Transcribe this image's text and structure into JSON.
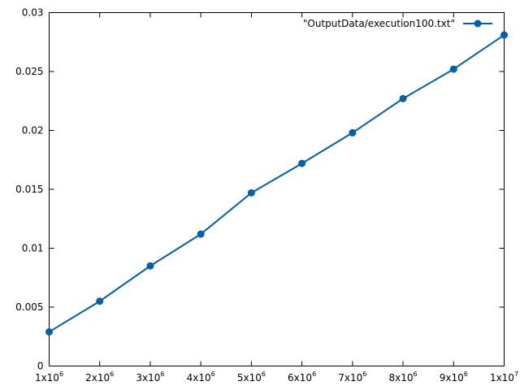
{
  "chart_data": {
    "type": "line",
    "title": "",
    "xlabel": "",
    "ylabel": "",
    "xlim": [
      1000000,
      10000000
    ],
    "ylim": [
      0,
      0.03
    ],
    "x_ticks": [
      {
        "value": 1000000,
        "base": "1x10",
        "exp": "6"
      },
      {
        "value": 2000000,
        "base": "2x10",
        "exp": "6"
      },
      {
        "value": 3000000,
        "base": "3x10",
        "exp": "6"
      },
      {
        "value": 4000000,
        "base": "4x10",
        "exp": "6"
      },
      {
        "value": 5000000,
        "base": "5x10",
        "exp": "6"
      },
      {
        "value": 6000000,
        "base": "6x10",
        "exp": "6"
      },
      {
        "value": 7000000,
        "base": "7x10",
        "exp": "6"
      },
      {
        "value": 8000000,
        "base": "8x10",
        "exp": "6"
      },
      {
        "value": 9000000,
        "base": "9x10",
        "exp": "6"
      },
      {
        "value": 10000000,
        "base": "1x10",
        "exp": "7"
      }
    ],
    "y_ticks": [
      {
        "value": 0,
        "label": "0"
      },
      {
        "value": 0.005,
        "label": "0.005"
      },
      {
        "value": 0.01,
        "label": "0.01"
      },
      {
        "value": 0.015,
        "label": "0.015"
      },
      {
        "value": 0.02,
        "label": "0.02"
      },
      {
        "value": 0.025,
        "label": "0.025"
      },
      {
        "value": 0.03,
        "label": "0.03"
      }
    ],
    "grid": false,
    "legend_position": "top-right",
    "series": [
      {
        "name": "\"OutputData/execution100.txt\"",
        "color": "#0060ad",
        "marker": "circle",
        "x": [
          1000000,
          2000000,
          3000000,
          4000000,
          5000000,
          6000000,
          7000000,
          8000000,
          9000000,
          10000000
        ],
        "y": [
          0.0029,
          0.0055,
          0.0085,
          0.0112,
          0.0147,
          0.0172,
          0.0198,
          0.0227,
          0.0252,
          0.0281
        ]
      }
    ]
  }
}
